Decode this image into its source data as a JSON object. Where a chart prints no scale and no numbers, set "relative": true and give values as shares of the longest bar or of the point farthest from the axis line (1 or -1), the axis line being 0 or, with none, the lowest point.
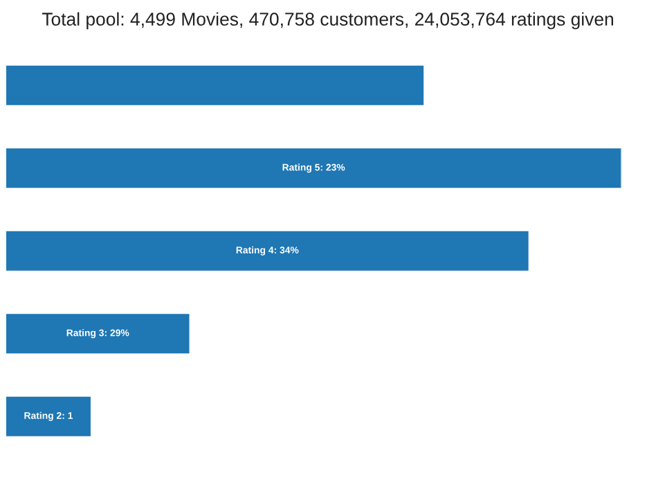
{
  "chart_data": {
    "type": "bar",
    "orientation": "horizontal",
    "relative": true,
    "title": "Total pool: 4,499 Movies, 470,758 customers, 24,053,764 ratings given",
    "categories": [
      null,
      "Rating 5: 23%",
      "Rating 4: 34%",
      "Rating 3: 29%",
      "Rating 2: 1"
    ],
    "values": [
      0.68,
      1,
      0.85,
      0.3,
      0.14
    ],
    "color": "#1f77b4"
  }
}
